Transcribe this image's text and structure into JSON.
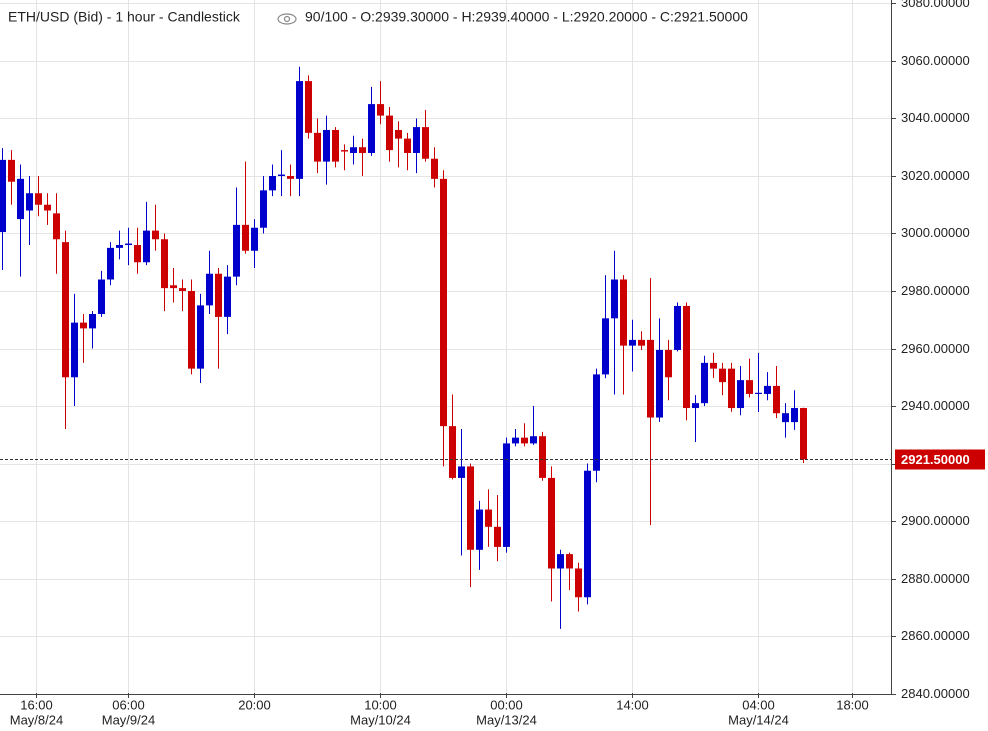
{
  "chart_data": {
    "type": "candlestick",
    "title": "ETH/USD (Bid) - 1 hour - Candlestick",
    "info": "90/100 - O:2939.30000 - H:2939.40000 - L:2920.20000 - C:2921.50000",
    "up_color": "#0000cc",
    "down_color": "#cc0000",
    "grid": true,
    "xlim": [
      -0.222,
      98.78
    ],
    "ylim": [
      2840.2,
      3081.2
    ],
    "yticks": [
      {
        "value": 2840,
        "label": "2840.00000"
      },
      {
        "value": 2860,
        "label": "2860.00000"
      },
      {
        "value": 2880,
        "label": "2880.00000"
      },
      {
        "value": 2900,
        "label": "2900.00000"
      },
      {
        "value": 2920,
        "label": "2920.00000"
      },
      {
        "value": 2940,
        "label": "2940.00000"
      },
      {
        "value": 2960,
        "label": "2960.00000"
      },
      {
        "value": 2980,
        "label": "2980.00000"
      },
      {
        "value": 3000,
        "label": "3000.00000"
      },
      {
        "value": 3020,
        "label": "3020.00000"
      },
      {
        "value": 3040,
        "label": "3040.00000"
      },
      {
        "value": 3060,
        "label": "3060.00000"
      },
      {
        "value": 3080,
        "label": "3080.00000"
      }
    ],
    "xticks": [
      {
        "value": 3.8,
        "label": "16:00",
        "date": "May/8/24"
      },
      {
        "value": 14,
        "label": "06:00",
        "date": "May/9/24"
      },
      {
        "value": 28,
        "label": "20:00"
      },
      {
        "value": 42,
        "label": "10:00",
        "date": "May/10/24"
      },
      {
        "value": 56,
        "label": "00:00",
        "date": "May/13/24"
      },
      {
        "value": 70,
        "label": "14:00"
      },
      {
        "value": 84,
        "label": "04:00",
        "date": "May/14/24"
      },
      {
        "value": 94.4,
        "label": "18:00"
      }
    ],
    "current_price": {
      "value": 2921.5,
      "label": "2921.50000"
    },
    "open": [
      3000.5,
      3025.6,
      3005,
      3008,
      3014,
      3010,
      3007,
      2997,
      2950,
      2969,
      2967,
      2972,
      2984,
      2995,
      2996,
      2996,
      2990,
      3001,
      2998,
      2982,
      2981,
      2980,
      2953,
      2975,
      2986,
      2971,
      2985,
      3003,
      2994,
      3002,
      3015,
      3020,
      3020,
      3019,
      3053,
      3035,
      3025,
      3036,
      3029,
      3028,
      3030,
      3028,
      3045,
      3041,
      3036,
      3033,
      3028,
      3037,
      3026,
      3019,
      2933,
      2915,
      2919,
      2890,
      2904,
      2898,
      2891,
      2927,
      2929,
      2927,
      2929.5,
      2915,
      2883.5,
      2888.5,
      2883.5,
      2873.5,
      2917.5,
      2951,
      2970.5,
      2984,
      2961,
      2963,
      2963,
      2936,
      2959.5,
      2959.5,
      2974.8,
      2939.3,
      2941,
      2955,
      2953,
      2953,
      2939.3,
      2949,
      2944.2,
      2944.2,
      2947,
      2934.4,
      2934.4,
      2939.3
    ],
    "high": [
      3029.7,
      3029,
      3024,
      3020,
      3020,
      3014,
      3014,
      3001,
      2979,
      2972,
      2973,
      2987,
      2997,
      3001,
      3002,
      3002,
      3011,
      3010,
      3000,
      2988,
      2984,
      2984,
      2979,
      2994,
      2988,
      2989,
      3016,
      3025,
      3005,
      3020,
      3024,
      3029,
      3024,
      3058,
      3055,
      3040,
      3041,
      3037,
      3031,
      3034,
      3033,
      3051,
      3053,
      3044,
      3039,
      3035,
      3040,
      3043,
      3030,
      3022,
      2944,
      2932,
      2920,
      2907,
      2911,
      2909,
      2929,
      2932,
      2934,
      2940,
      2931,
      2919,
      2890,
      2889,
      2885.5,
      2920,
      2953,
      2985.5,
      2994,
      2985.5,
      2970,
      2966,
      2984.5,
      2970.5,
      2963,
      2976,
      2976,
      2943.8,
      2957.5,
      2958.5,
      2955,
      2955,
      2953.9,
      2956.5,
      2958.5,
      2951.8,
      2953.9,
      2941,
      2945.5,
      2939.4
    ],
    "low": [
      2987.3,
      3010,
      2985,
      2996,
      3006,
      3003,
      2986,
      2932,
      2940,
      2955,
      2960,
      2971,
      2982,
      2991,
      2989,
      2986,
      2989,
      2994,
      2973,
      2976,
      2973,
      2951,
      2948,
      2972,
      2953,
      2965,
      2982,
      2993,
      2988,
      3000,
      3013,
      3013,
      3013,
      3013,
      3033,
      3021,
      3017,
      3023,
      3022,
      3024,
      3020,
      3027,
      3038,
      3025,
      3023,
      3022,
      3021,
      3025,
      3016,
      2919,
      2914.5,
      2888,
      2877,
      2883,
      2891,
      2886,
      2889,
      2926,
      2926,
      2926.5,
      2914,
      2872,
      2862.5,
      2876,
      2868.5,
      2871,
      2913.5,
      2949.7,
      2944,
      2944,
      2952,
      2959.5,
      2898.6,
      2934.5,
      2942,
      2959,
      2935,
      2927.5,
      2940,
      2949.8,
      2943.8,
      2938,
      2936.8,
      2943,
      2937.9,
      2942,
      2935.8,
      2929,
      2931.7,
      2920.2
    ],
    "close": [
      3025.6,
      3018,
      3019,
      3014,
      3010,
      3008,
      2998,
      2950,
      2969,
      2967,
      2972,
      2984,
      2995,
      2996,
      2996.5,
      2990,
      3001,
      2998,
      2981,
      2981,
      2980,
      2953,
      2975,
      2986,
      2971,
      2985,
      3003,
      2994,
      3002,
      3015,
      3020,
      3020.5,
      3019,
      3053,
      3035,
      3025,
      3036,
      3025,
      3028.5,
      3030,
      3028,
      3045,
      3041,
      3029,
      3033,
      3028,
      3037,
      3026,
      3019,
      2933,
      2915,
      2919,
      2890,
      2904,
      2898,
      2891,
      2927,
      2929,
      2927,
      2929.5,
      2915,
      2883.5,
      2888.5,
      2883.5,
      2873.5,
      2917.5,
      2951,
      2970.5,
      2984,
      2961,
      2963,
      2961,
      2936,
      2959.5,
      2950,
      2974.8,
      2939.3,
      2941,
      2955,
      2953,
      2948.3,
      2939.3,
      2949,
      2944.2,
      2944.6,
      2947,
      2937.5,
      2937.5,
      2939.3,
      2921.5
    ]
  }
}
